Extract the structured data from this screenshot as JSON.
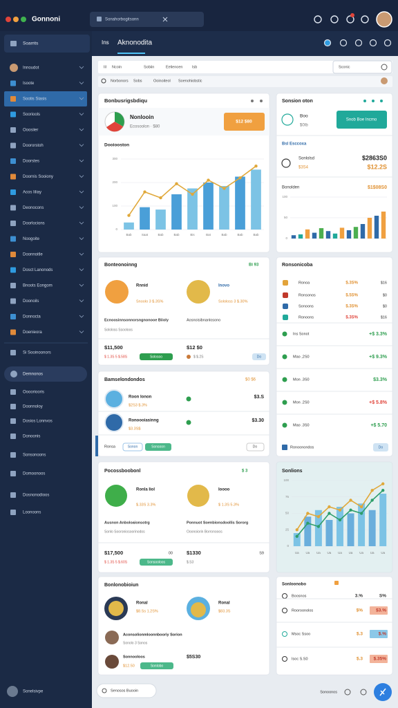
{
  "topbar": {
    "brand": "Gonnoni",
    "search": "Sonahorbogitsonn"
  },
  "sidebar": {
    "top": "Soarrits",
    "items": [
      "Innoudot",
      "Isoote",
      "Sootis Siasis",
      "Sooriools",
      "Ooosiier",
      "Doororstoh",
      "Doorstes",
      "Doornis Sooiony",
      "Acos Iiliay",
      "Deonocons",
      "Doorlocions",
      "Noogoite",
      "Doonnoitle",
      "Dosct Lanonods",
      "Bnoots Eongom",
      "Doonoils",
      "Donnocta",
      "Doenieora"
    ],
    "section": "Si Sooinoonors",
    "pill": "Demnonos",
    "items2": [
      "Ooooriooris",
      "Doonnoloy",
      "Dosios Lonnvos",
      "Donoonis",
      "Sonsonoons",
      "Domoonoos",
      "Dosnonodioos",
      "Loonoons"
    ],
    "footer": "Sonelsivpe"
  },
  "header": {
    "tab": "Ins",
    "title": "Aknonodita"
  },
  "filters": {
    "row1": [
      "Iil",
      "Ncoin",
      "Sobiin",
      "Eelienoen",
      "Isb"
    ],
    "date": "Sconic",
    "row2": [
      "Norbonors",
      "Sobs",
      "Ooinoiteol",
      "Soenohiobstic"
    ]
  },
  "card1": {
    "title": "Bonbusrigsbdiqu",
    "name": "Nonlooin",
    "sub": "Ecosoolon · $80",
    "button": "$12 $80",
    "section": "Dooiooston",
    "chart": {
      "type": "bar",
      "categories": [
        "Bab",
        "Saat",
        "Bab",
        "Bab",
        "Bis",
        "Bat",
        "Bab",
        "Bab",
        "Bab"
      ],
      "series": [
        {
          "color": "#4a9fd8",
          "values": [
            30,
            95,
            85,
            150,
            175,
            200,
            185,
            225,
            255
          ]
        },
        {
          "type": "line",
          "color": "#e0a83a",
          "values": [
            60,
            160,
            135,
            195,
            150,
            210,
            175,
            220,
            270
          ]
        }
      ],
      "ylim": [
        0,
        300
      ],
      "yticks": [
        0,
        100,
        200,
        300
      ]
    }
  },
  "card2": {
    "title": "Sonsion oton",
    "name": "Boo",
    "sub": "$0Ib",
    "button": "Snob Boe Incmo",
    "section": "Bsl Esccoxa",
    "rows": [
      {
        "label": "Sonlolsd",
        "value": "$2863S0"
      },
      {
        "label": "$3S4",
        "value": "$12.2S"
      }
    ],
    "section2": "Bonolden",
    "amount": "$1$08S0",
    "chart": {
      "type": "bar",
      "series": [
        {
          "colors": [
            "#2f6aa8",
            "#20a99a",
            "#f0a040",
            "#2f6aa8",
            "#4caf50",
            "#2f6aa8",
            "#20a99a",
            "#f0a040",
            "#2f6aa8",
            "#4caf50",
            "#2f6aa8",
            "#f0a040",
            "#2f6aa8",
            "#f0a040"
          ],
          "values": [
            8,
            10,
            22,
            14,
            25,
            18,
            12,
            26,
            20,
            28,
            35,
            50,
            55,
            65
          ]
        }
      ],
      "ylim": [
        0,
        100
      ],
      "yticks": [
        0,
        50,
        100
      ]
    }
  },
  "card3": {
    "title": "Bonteonoinng",
    "badge": "Bi 93",
    "items": [
      {
        "title": "Rnnid",
        "sub": "Snoolo 3 $.3S%"
      },
      {
        "title": "Inovo",
        "sub": "Sololoss 3 $.30%"
      }
    ],
    "desc": [
      "Ecnoosinnsonnorsngnonooe Biioly",
      "Aosnoisibnanlosono"
    ],
    "note": "Sololoss Ssooloos",
    "amounts": [
      "$11,500",
      "$12 $0"
    ],
    "subs": [
      "$ 1.3S 5 $.58S",
      "$ $.2S"
    ],
    "buttons": [
      "Solosoo",
      "Do"
    ]
  },
  "card4": {
    "title": "Ronsonicoba",
    "coins": [
      {
        "name": "Ronoa",
        "value": "$.3S%",
        "extra": "$16"
      },
      {
        "name": "Ronsonos",
        "value": "$.5S%",
        "extra": "$0"
      },
      {
        "name": "Sonoons",
        "value": "$.3S%",
        "extra": "$0"
      },
      {
        "name": "Ronoons",
        "value": "$.3S%",
        "extra": "$16"
      }
    ],
    "rows": [
      {
        "name": "Ins Sonot",
        "value": "+$ 3.3%"
      },
      {
        "name": "Mao ,2S0",
        "value": "+$ 9.3%"
      },
      {
        "name": "Mon .3S0",
        "value": "$3.3%"
      },
      {
        "name": "Mon .2S0",
        "value": "+$ 5.8%"
      },
      {
        "name": "Mao .3S0",
        "value": "+$ 5.70"
      }
    ],
    "footer": "Ronoonondos",
    "button": "Do"
  },
  "card5": {
    "title": "Bamselondondos",
    "badge": "$0 $6",
    "items": [
      {
        "title": "Roon Ionon",
        "sub": "$2S3 $.3%",
        "value": "$3.S"
      },
      {
        "title": "Ronoooiasinng",
        "sub": "$3.3S$",
        "value": "$3.30"
      }
    ],
    "buttons": [
      "Ronsa",
      "Sonon",
      "Sonsoon",
      "Do"
    ]
  },
  "card6": {
    "title": "Pocossboobonl",
    "badge": "$ 3",
    "items": [
      {
        "title": "Ronla Iiol",
        "sub": "$.33S 3.3%"
      },
      {
        "title": "Ioooo",
        "sub": "$ 1.3S 5.3%"
      }
    ],
    "desc": [
      "Ausnon Anboloaionsotrg",
      "Ponnuot Soenbionsdoollis Sororg"
    ],
    "note": [
      "Sonlo Sooroniosoorinodos",
      "Ooonoiorin Borronooos"
    ],
    "amounts": [
      "$17,500",
      "$1330"
    ],
    "subs": [
      "$ 1.3S 5 $.60S",
      "$.S3"
    ],
    "badges": [
      "00",
      "S9"
    ],
    "button": "Sonsooloos"
  },
  "card7": {
    "title": "Sonlions",
    "chart": {
      "type": "bar",
      "categories": [
        "Ua",
        "Ua",
        "Ua",
        "Ua",
        "Ua",
        "Ua",
        "Ua",
        "Ua",
        "Ua"
      ],
      "series": [
        {
          "color": "#6aaedc",
          "values": [
            20,
            45,
            55,
            40,
            60,
            50,
            65,
            55,
            80
          ]
        },
        {
          "type": "line",
          "color": "#e0a83a",
          "values": [
            25,
            50,
            45,
            60,
            55,
            70,
            60,
            85,
            95
          ]
        },
        {
          "type": "line",
          "color": "#2e9e6a",
          "values": [
            15,
            35,
            30,
            50,
            40,
            55,
            50,
            70,
            85
          ]
        }
      ],
      "ylim": [
        0,
        100
      ],
      "yticks": [
        0,
        25,
        50,
        75,
        100
      ]
    }
  },
  "card8": {
    "title": "Bonlonobioiun",
    "items": [
      {
        "title": "Ronal",
        "sub": "$8.Ss 1.2S%"
      },
      {
        "title": "Ronal",
        "sub": "$83.3S"
      }
    ],
    "people": [
      {
        "title": "Aconsolionmloonnbooriy Sorion",
        "sub": "Sonolo 3 Sonos"
      },
      {
        "title": "Sonnooloos",
        "sub": "$12.50",
        "value": "$5S30"
      }
    ],
    "button": "Sonlobo"
  },
  "card9": {
    "title": "Sonloonobo",
    "rows": [
      {
        "name": "Boosnos",
        "a": "3.%",
        "b": "S%"
      },
      {
        "name": "Rooroonolos",
        "a": "$%",
        "b": "$3.%"
      },
      {
        "name": "Msoc Ssoo",
        "a": "$.3",
        "b": "$.%"
      },
      {
        "name": "Isoc S.S0",
        "a": "$.3",
        "b": "$.35%"
      }
    ]
  },
  "bottom": {
    "left": "Senosos Buooin",
    "right": "Sonoonos"
  }
}
